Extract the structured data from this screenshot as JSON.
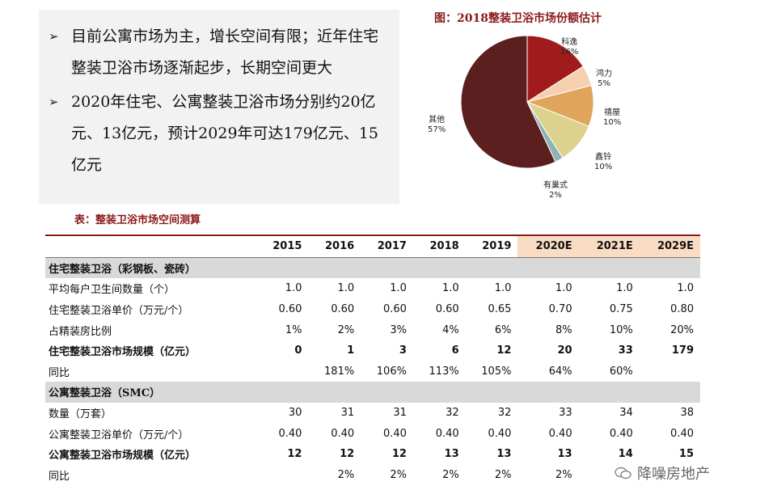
{
  "bullets": [
    "目前公寓市场为主，增长空间有限；近年住宅整装卫浴市场逐渐起步，长期空间更大",
    "2020年住宅、公寓整装卫浴市场分别约20亿元、13亿元，预计2029年可达179亿元、15亿元"
  ],
  "pie": {
    "title": "图：2018整装卫浴市场份额估计",
    "labels": [
      {
        "name": "科逸",
        "pct": "16%"
      },
      {
        "name": "鸿力",
        "pct": "5%"
      },
      {
        "name": "禧屋",
        "pct": "10%"
      },
      {
        "name": "鑫铃",
        "pct": "10%"
      },
      {
        "name": "有巢式",
        "pct": "2%"
      },
      {
        "name": "其他",
        "pct": "57%"
      }
    ]
  },
  "chart_data": {
    "type": "pie",
    "title": "图：2018整装卫浴市场份额估计",
    "slices": [
      {
        "label": "科逸",
        "value": 16,
        "color": "#a01c1c"
      },
      {
        "label": "鸿力",
        "value": 5,
        "color": "#f6cfae"
      },
      {
        "label": "禧屋",
        "value": 10,
        "color": "#e0a45c"
      },
      {
        "label": "鑫铃",
        "value": 10,
        "color": "#ddd18e"
      },
      {
        "label": "有巢式",
        "value": 2,
        "color": "#8fb3b3"
      },
      {
        "label": "其他",
        "value": 57,
        "color": "#5c1f1f"
      }
    ]
  },
  "table": {
    "title": "表：整装卫浴市场空间测算",
    "years": [
      "2015",
      "2016",
      "2017",
      "2018",
      "2019",
      "2020E",
      "2021E",
      "2029E"
    ],
    "sections": [
      {
        "name": "住宅整装卫浴（彩钢板、瓷砖）",
        "rows": [
          {
            "label": "平均每户卫生间数量（个）",
            "values": [
              "1.0",
              "1.0",
              "1.0",
              "1.0",
              "1.0",
              "1.0",
              "1.0",
              "1.0"
            ],
            "bold": false
          },
          {
            "label": "住宅整装卫浴单价（万元/个）",
            "values": [
              "0.60",
              "0.60",
              "0.60",
              "0.60",
              "0.65",
              "0.70",
              "0.75",
              "0.80"
            ],
            "bold": false
          },
          {
            "label": "占精装房比例",
            "values": [
              "1%",
              "2%",
              "3%",
              "4%",
              "6%",
              "8%",
              "10%",
              "20%"
            ],
            "bold": false
          },
          {
            "label": "住宅整装卫浴市场规模（亿元）",
            "values": [
              "0",
              "1",
              "3",
              "6",
              "12",
              "20",
              "33",
              "179"
            ],
            "bold": true
          },
          {
            "label": "同比",
            "values": [
              "",
              "181%",
              "106%",
              "113%",
              "105%",
              "64%",
              "60%",
              ""
            ],
            "bold": false
          }
        ]
      },
      {
        "name": "公寓整装卫浴（SMC）",
        "rows": [
          {
            "label": "数量（万套）",
            "values": [
              "30",
              "31",
              "31",
              "32",
              "32",
              "33",
              "34",
              "38"
            ],
            "bold": false
          },
          {
            "label": "公寓整装卫浴单价（万元/个）",
            "values": [
              "0.40",
              "0.40",
              "0.40",
              "0.40",
              "0.40",
              "0.40",
              "0.40",
              "0.40"
            ],
            "bold": false
          },
          {
            "label": "公寓整装卫浴市场规模（亿元）",
            "values": [
              "12",
              "12",
              "12",
              "13",
              "13",
              "13",
              "14",
              "15"
            ],
            "bold": true
          },
          {
            "label": "同比",
            "values": [
              "",
              "2%",
              "2%",
              "2%",
              "2%",
              "2%",
              "",
              ""
            ],
            "bold": false
          }
        ]
      }
    ]
  },
  "watermark": "降噪房地产"
}
